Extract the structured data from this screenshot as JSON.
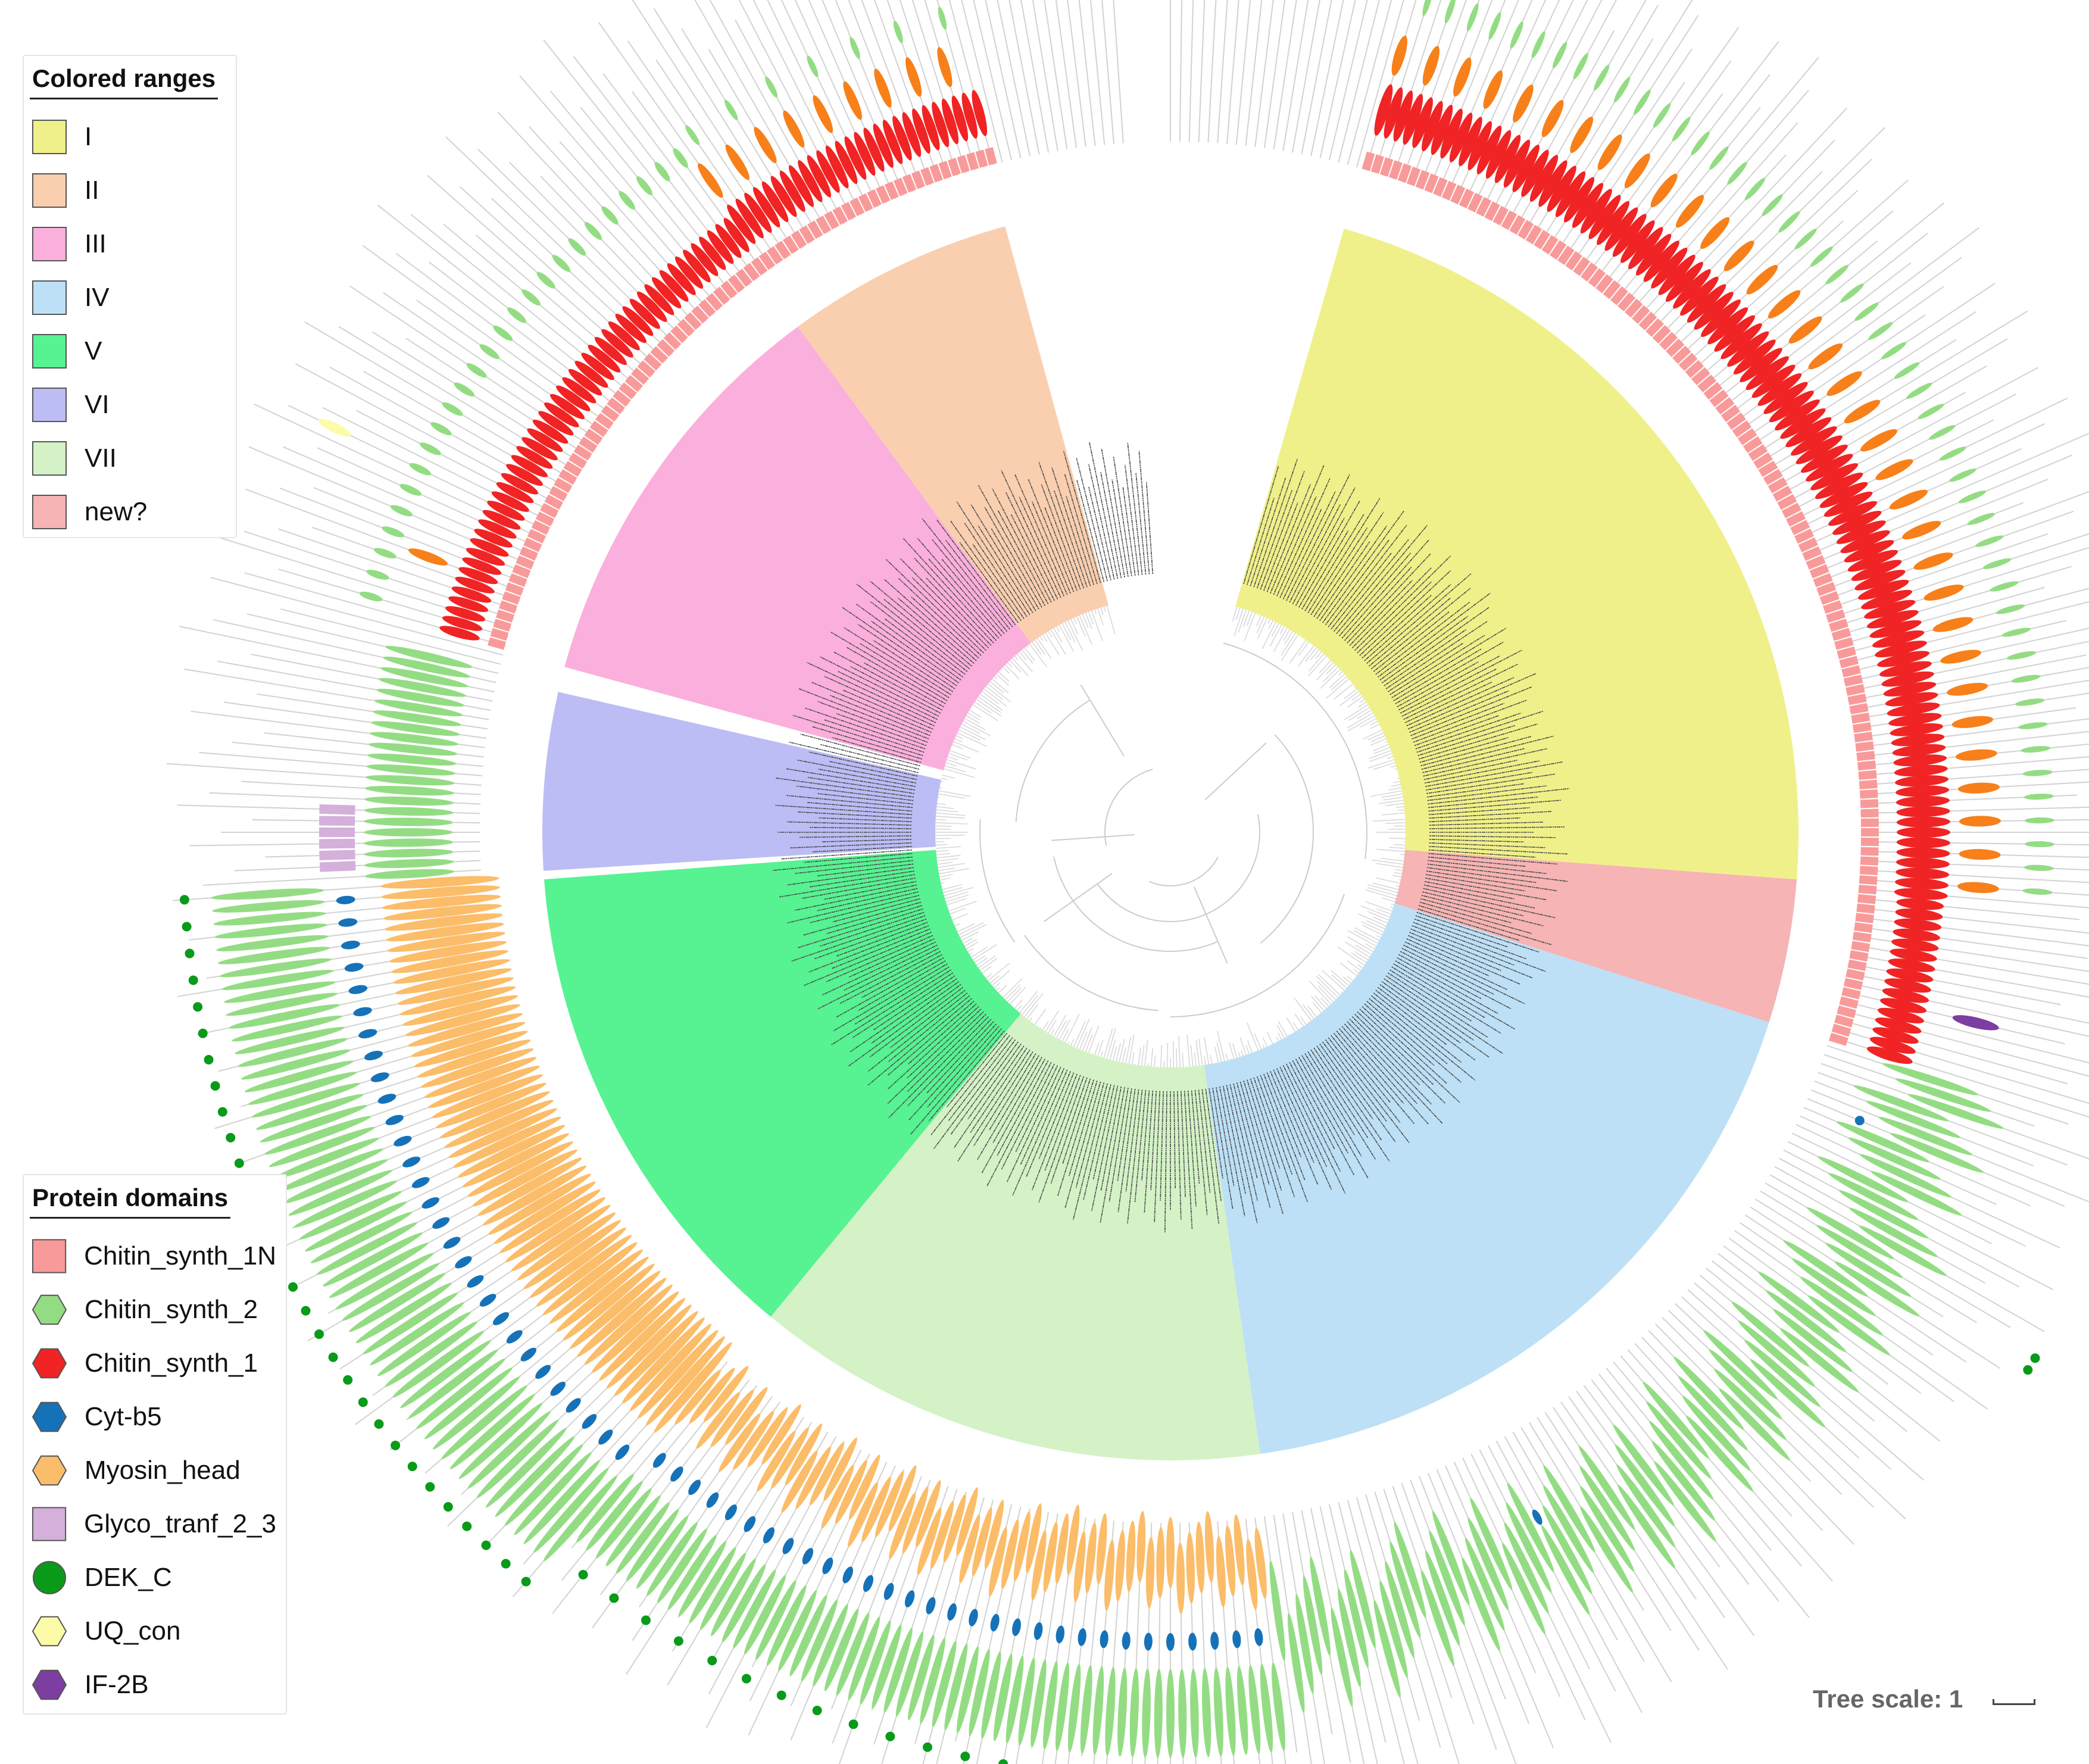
{
  "legend_ranges": {
    "title": "Colored ranges",
    "items": [
      {
        "label": "I",
        "color": "#f0f08a"
      },
      {
        "label": "II",
        "color": "#f9cfb0"
      },
      {
        "label": "III",
        "color": "#fbafdc"
      },
      {
        "label": "IV",
        "color": "#bde0f6"
      },
      {
        "label": "V",
        "color": "#57f292"
      },
      {
        "label": "VI",
        "color": "#bcbdf5"
      },
      {
        "label": "VII",
        "color": "#d4f2c6"
      },
      {
        "label": "new?",
        "color": "#f6b4b4"
      }
    ]
  },
  "legend_domains": {
    "title": "Protein domains",
    "items": [
      {
        "label": "Chitin_synth_1N",
        "color": "#f99a9a",
        "shape": "square"
      },
      {
        "label": "Chitin_synth_2",
        "color": "#94dc84",
        "shape": "hexagon"
      },
      {
        "label": "Chitin_synth_1",
        "color": "#f02424",
        "shape": "hexagon"
      },
      {
        "label": "Cyt-b5",
        "color": "#1672b8",
        "shape": "hexagon"
      },
      {
        "label": "Myosin_head",
        "color": "#fbbd6a",
        "shape": "hexagon"
      },
      {
        "label": "Glyco_tranf_2_3",
        "color": "#d4b0db",
        "shape": "square"
      },
      {
        "label": "DEK_C",
        "color": "#0a9a1a",
        "shape": "circle"
      },
      {
        "label": "UQ_con",
        "color": "#fcfca8",
        "shape": "hexagon"
      },
      {
        "label": "IF-2B",
        "color": "#7c3ea0",
        "shape": "hexagon"
      }
    ]
  },
  "scale": {
    "label": "Tree scale: 1"
  },
  "tree_ranges": [
    {
      "clade": "I",
      "from": 21,
      "to": 121
    },
    {
      "clade": "new?",
      "from": 121,
      "to": 138
    },
    {
      "clade": "IV",
      "from": 138,
      "to": 220
    },
    {
      "clade": "VII",
      "from": 220,
      "to": 281
    },
    {
      "clade": "V",
      "from": 281,
      "to": 340
    },
    {
      "clade": "VI",
      "from": 341,
      "to": 362
    },
    {
      "clade": "III",
      "from": 365,
      "to": 414
    },
    {
      "clade": "II",
      "from": 414,
      "to": 441
    }
  ]
}
